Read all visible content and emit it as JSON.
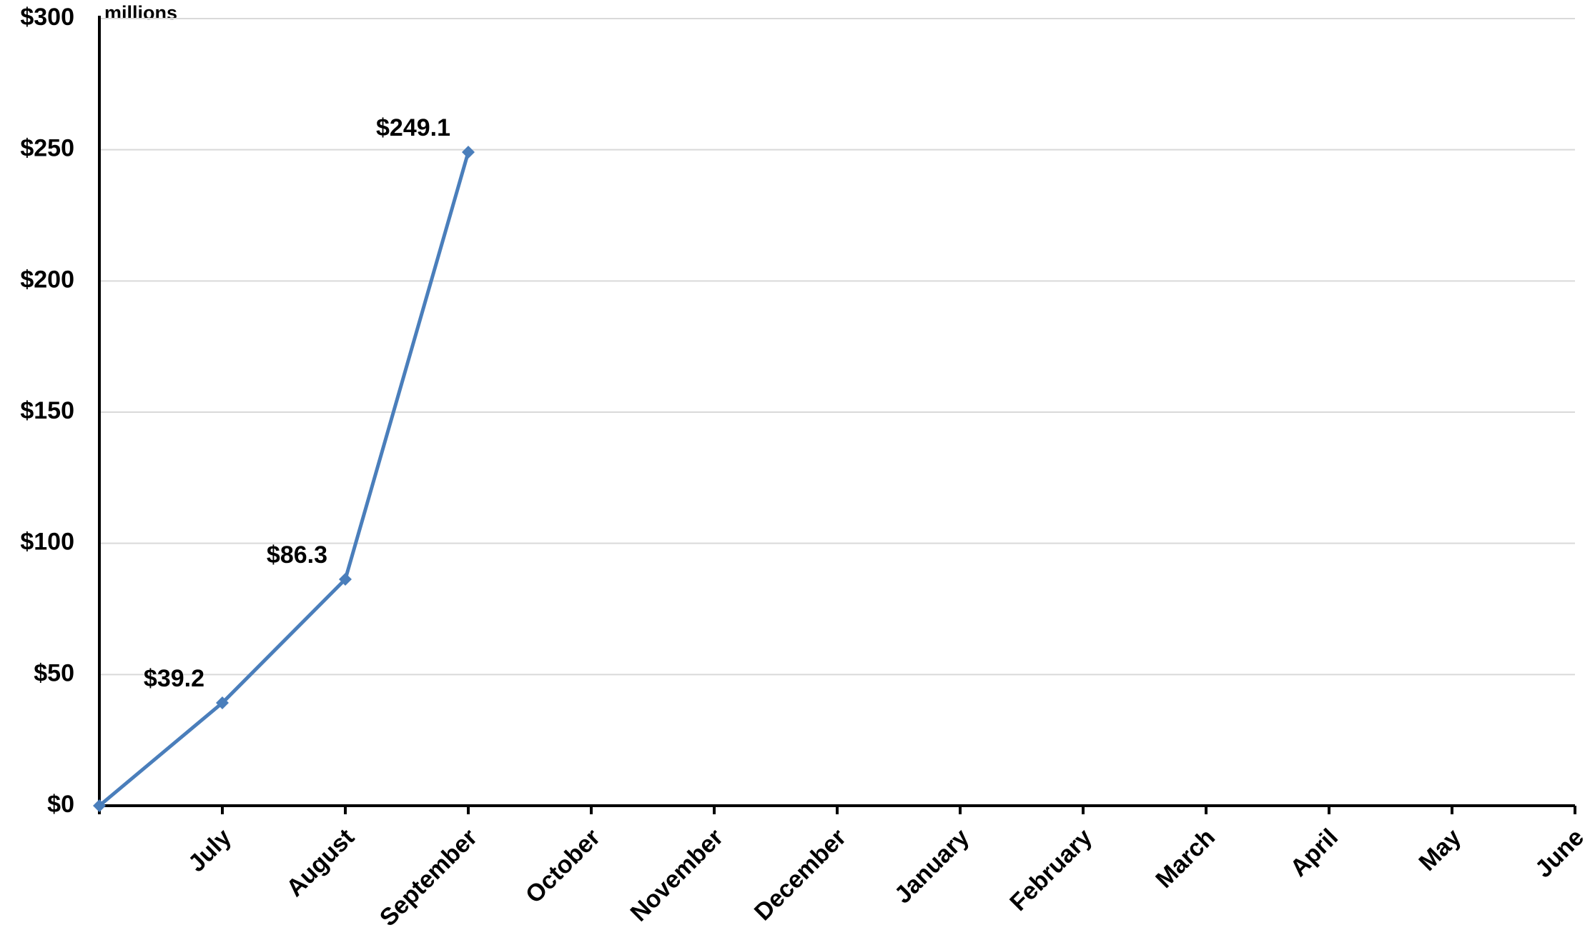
{
  "chart_data": {
    "type": "line",
    "annotation": "millions",
    "categories": [
      null,
      "July",
      "August",
      "September",
      "October",
      "November",
      "December",
      "January",
      "February",
      "March",
      "April",
      "May",
      "June"
    ],
    "series": [
      {
        "color": "#4a7ebb",
        "values": [
          0,
          39.2,
          86.3,
          249.1,
          null,
          null,
          null,
          null,
          null,
          null,
          null,
          null,
          null
        ],
        "value_labels": [
          null,
          "$39.2",
          "$86.3",
          "$249.1",
          null,
          null,
          null,
          null,
          null,
          null,
          null,
          null,
          null
        ]
      }
    ],
    "ylim": [
      0,
      300
    ],
    "yticks": [
      {
        "value": 0,
        "label": "$0"
      },
      {
        "value": 50,
        "label": "$50"
      },
      {
        "value": 100,
        "label": "$100"
      },
      {
        "value": 150,
        "label": "$150"
      },
      {
        "value": 200,
        "label": "$200"
      },
      {
        "value": 250,
        "label": "$250"
      },
      {
        "value": 300,
        "label": "$300"
      }
    ],
    "grid": true
  }
}
